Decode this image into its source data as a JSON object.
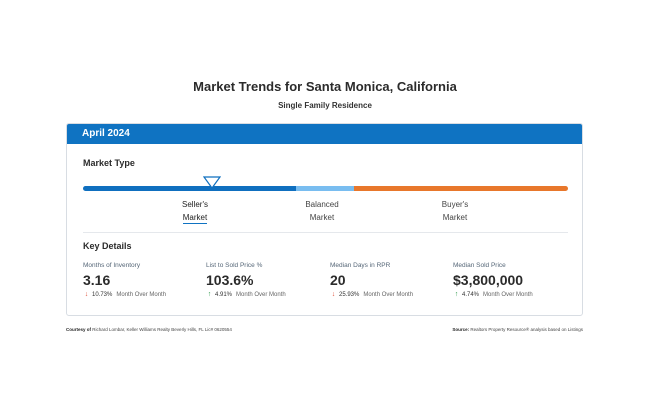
{
  "page": {
    "title": "Market Trends for Santa Monica, California",
    "subtitle": "Single Family Residence"
  },
  "card": {
    "header": "April 2024",
    "market_type_label": "Market Type",
    "market_options": [
      {
        "line1": "Seller's",
        "line2": "Market"
      },
      {
        "line1": "Balanced",
        "line2": "Market"
      },
      {
        "line1": "Buyer's",
        "line2": "Market"
      }
    ],
    "selected_market": "Seller's Market",
    "colors": {
      "header": "#0f73c2",
      "seller": "#0f6fbf",
      "balanced": "#79bdf0",
      "buyer": "#e8772b"
    },
    "key_details_label": "Key Details",
    "stats": [
      {
        "label": "Months of Inventory",
        "value": "3.16",
        "direction": "down",
        "change": "10.73%",
        "period": "Month Over Month"
      },
      {
        "label": "List to Sold Price %",
        "value": "103.6%",
        "direction": "up",
        "change": "4.91%",
        "period": "Month Over Month"
      },
      {
        "label": "Median Days in RPR",
        "value": "20",
        "direction": "down",
        "change": "25.93%",
        "period": "Month Over Month"
      },
      {
        "label": "Median Sold Price",
        "value": "$3,800,000",
        "direction": "up",
        "change": "4.74%",
        "period": "Month Over Month"
      }
    ]
  },
  "footer": {
    "courtesy_label": "Courtesy of",
    "courtesy_text": "Richard Lombar, Keller Williams Realty Beverly Hills, FL Lic# 0620554",
    "source_label": "Source:",
    "source_text": "Realtors Property Resource® analysis based on Listings"
  }
}
